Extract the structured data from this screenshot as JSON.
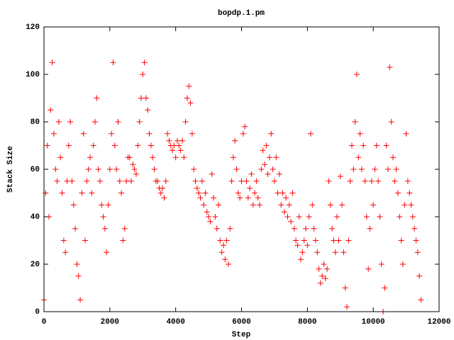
{
  "chart_data": {
    "type": "scatter",
    "title": "bopdp.1.pm",
    "x_label": "Step",
    "y_label": "Stack Size",
    "marker": "+",
    "color": "#ff0000",
    "xlim": [
      0,
      12000
    ],
    "xticks": [
      0,
      2000,
      4000,
      6000,
      8000,
      10000,
      12000
    ],
    "ylim": [
      0,
      120
    ],
    "yticks": [
      0,
      20,
      40,
      60,
      80,
      100,
      120
    ],
    "x": [
      0,
      50,
      100,
      150,
      200,
      250,
      300,
      350,
      400,
      450,
      500,
      550,
      600,
      650,
      700,
      750,
      800,
      850,
      900,
      950,
      1000,
      1050,
      1100,
      1150,
      1200,
      1250,
      1300,
      1350,
      1400,
      1450,
      1500,
      1550,
      1600,
      1650,
      1700,
      1750,
      1800,
      1850,
      1900,
      1950,
      2000,
      2050,
      2100,
      2150,
      2200,
      2250,
      2300,
      2350,
      2400,
      2450,
      2500,
      2550,
      2600,
      2650,
      2700,
      2750,
      2800,
      2850,
      2900,
      2950,
      3000,
      3050,
      3100,
      3150,
      3200,
      3250,
      3300,
      3350,
      3400,
      3450,
      3500,
      3550,
      3600,
      3650,
      3700,
      3750,
      3800,
      3850,
      3900,
      3950,
      4000,
      4050,
      4100,
      4150,
      4200,
      4250,
      4300,
      4350,
      4400,
      4450,
      4500,
      4550,
      4600,
      4650,
      4700,
      4750,
      4800,
      4850,
      4900,
      4950,
      5000,
      5050,
      5100,
      5150,
      5200,
      5250,
      5300,
      5350,
      5400,
      5450,
      5500,
      5550,
      5600,
      5650,
      5700,
      5750,
      5800,
      5850,
      5900,
      5950,
      6000,
      6050,
      6100,
      6150,
      6200,
      6250,
      6300,
      6350,
      6400,
      6450,
      6500,
      6550,
      6600,
      6650,
      6700,
      6750,
      6800,
      6850,
      6900,
      6950,
      7000,
      7050,
      7100,
      7150,
      7200,
      7250,
      7300,
      7350,
      7400,
      7450,
      7500,
      7550,
      7600,
      7650,
      7700,
      7750,
      7800,
      7850,
      7900,
      7950,
      8000,
      8050,
      8100,
      8150,
      8200,
      8250,
      8300,
      8350,
      8400,
      8450,
      8500,
      8550,
      8600,
      8650,
      8700,
      8750,
      8800,
      8850,
      8900,
      8950,
      9000,
      9050,
      9100,
      9150,
      9200,
      9250,
      9300,
      9350,
      9400,
      9450,
      9500,
      9550,
      9600,
      9650,
      9700,
      9750,
      9800,
      9850,
      9900,
      9950,
      10000,
      10050,
      10100,
      10150,
      10200,
      10250,
      10300,
      10350,
      10400,
      10450,
      10500,
      10550,
      10600,
      10650,
      10700,
      10750,
      10800,
      10850,
      10900,
      10950,
      11000,
      11050,
      11100,
      11150,
      11200,
      11250,
      11300,
      11350,
      11400,
      11450
    ],
    "values": [
      5,
      50,
      70,
      40,
      85,
      105,
      75,
      60,
      55,
      80,
      65,
      50,
      30,
      25,
      55,
      70,
      80,
      55,
      45,
      35,
      20,
      15,
      5,
      50,
      75,
      30,
      55,
      60,
      65,
      50,
      70,
      80,
      90,
      60,
      55,
      45,
      40,
      35,
      25,
      45,
      60,
      75,
      105,
      70,
      60,
      80,
      55,
      50,
      30,
      35,
      55,
      65,
      65,
      55,
      62,
      60,
      58,
      70,
      80,
      90,
      100,
      105,
      90,
      85,
      75,
      70,
      65,
      60,
      55,
      55,
      52,
      50,
      52,
      48,
      55,
      75,
      72,
      70,
      68,
      70,
      65,
      72,
      70,
      68,
      72,
      65,
      80,
      90,
      95,
      88,
      75,
      60,
      55,
      52,
      50,
      48,
      55,
      45,
      50,
      42,
      40,
      38,
      58,
      48,
      40,
      35,
      45,
      30,
      25,
      28,
      22,
      30,
      20,
      35,
      55,
      65,
      72,
      60,
      50,
      48,
      55,
      75,
      78,
      55,
      48,
      52,
      58,
      45,
      50,
      55,
      48,
      45,
      60,
      68,
      62,
      70,
      58,
      65,
      75,
      60,
      55,
      65,
      50,
      58,
      45,
      50,
      42,
      48,
      40,
      45,
      38,
      50,
      35,
      30,
      28,
      40,
      22,
      25,
      30,
      35,
      28,
      40,
      75,
      45,
      35,
      30,
      25,
      18,
      12,
      15,
      20,
      14,
      18,
      55,
      45,
      35,
      30,
      25,
      40,
      30,
      57,
      45,
      25,
      10,
      2,
      30,
      55,
      70,
      60,
      80,
      100,
      65,
      75,
      60,
      70,
      55,
      40,
      18,
      35,
      55,
      45,
      60,
      70,
      55,
      40,
      20,
      0,
      10,
      70,
      60,
      103,
      80,
      65,
      55,
      60,
      50,
      40,
      30,
      20,
      45,
      75,
      55,
      50,
      45,
      40,
      35,
      30,
      25,
      15,
      5
    ]
  }
}
